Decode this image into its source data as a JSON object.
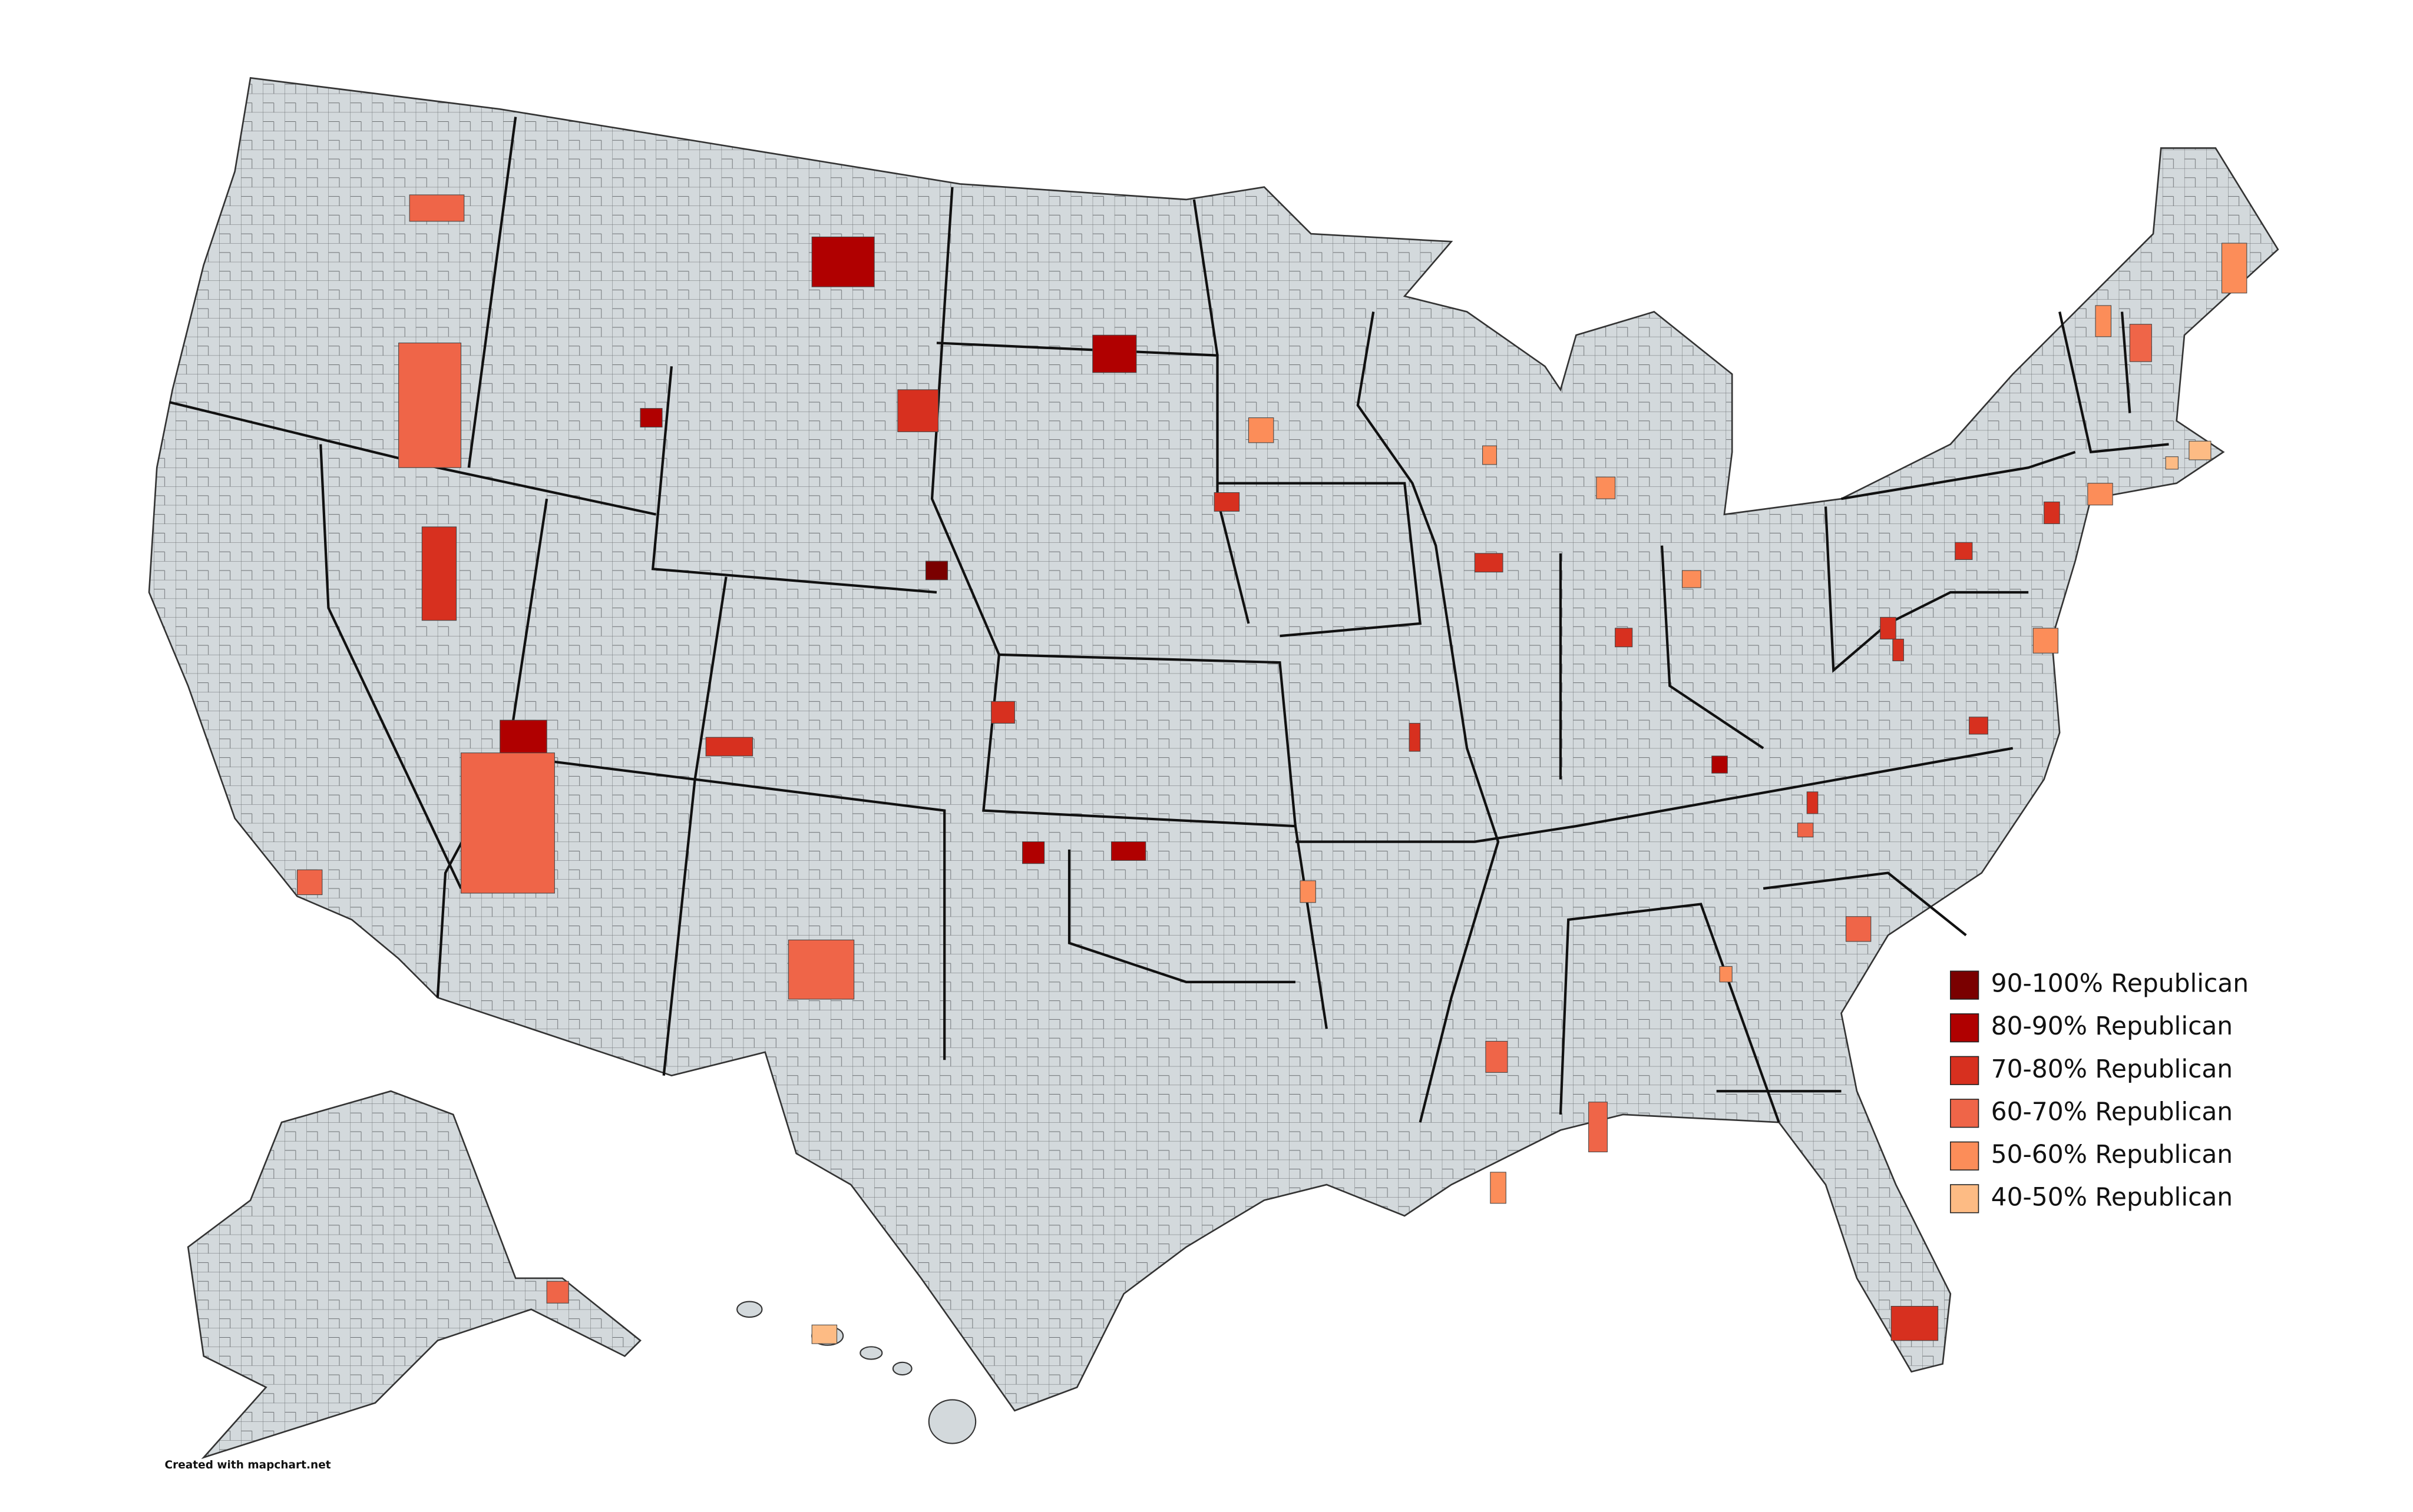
{
  "legend": {
    "items": [
      {
        "label": "90-100% Republican",
        "color": "#7a0000"
      },
      {
        "label": "80-90% Republican",
        "color": "#b00000"
      },
      {
        "label": "70-80% Republican",
        "color": "#d7301f"
      },
      {
        "label": "60-70% Republican",
        "color": "#ef6548"
      },
      {
        "label": "50-60% Republican",
        "color": "#fc8d59"
      },
      {
        "label": "40-50% Republican",
        "color": "#fdbb84"
      }
    ]
  },
  "footer": "Created with mapchart.net"
}
